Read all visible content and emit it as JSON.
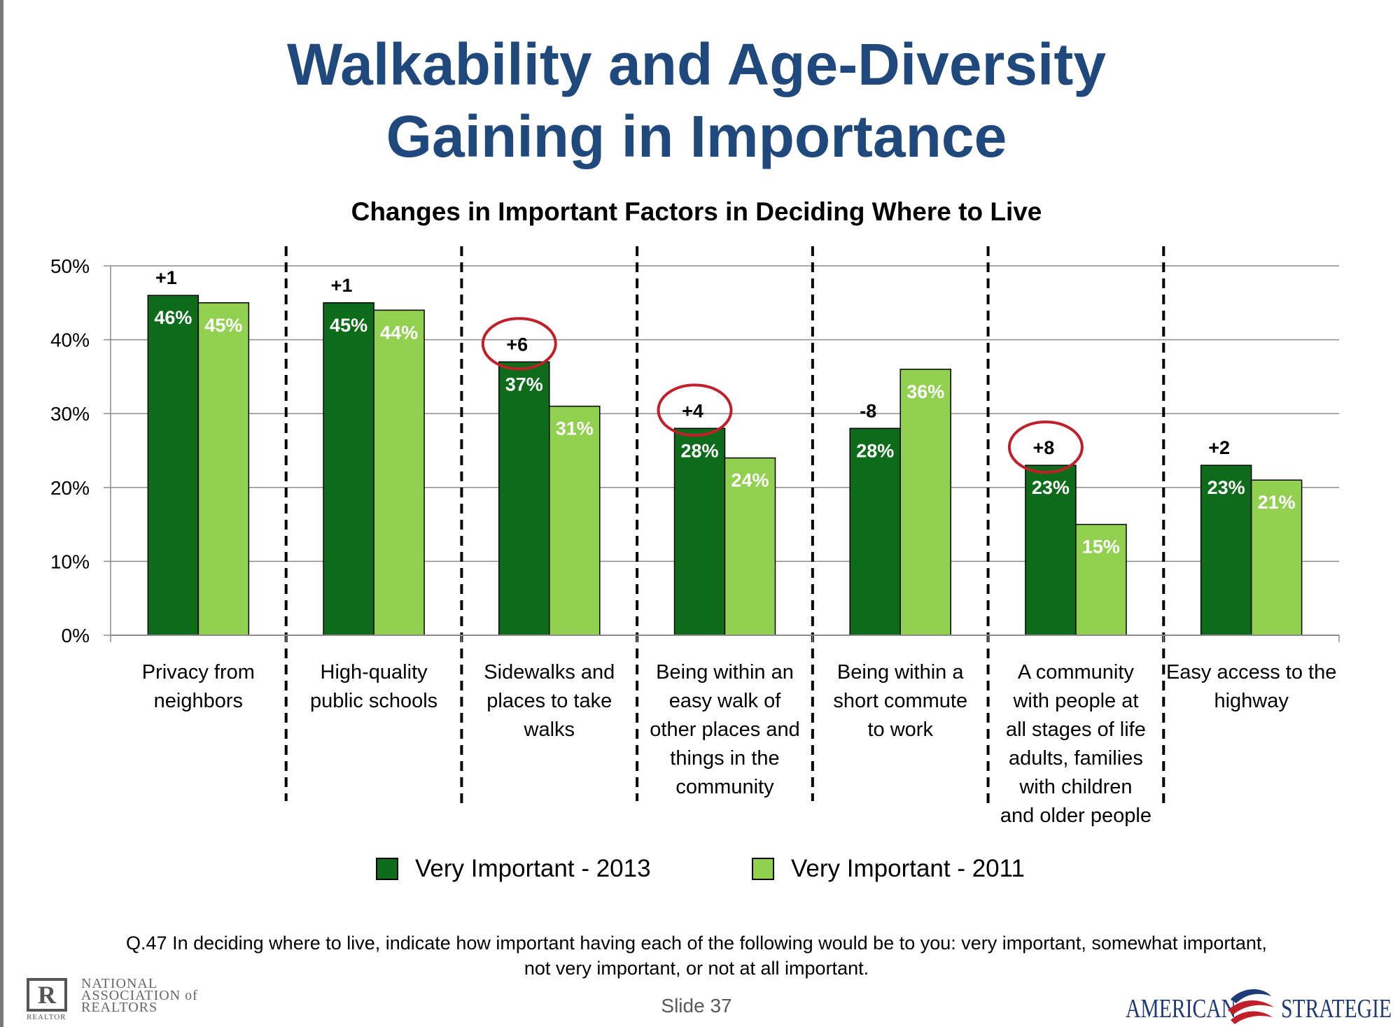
{
  "slide_title": [
    "Walkability and Age-Diversity",
    "Gaining in Importance"
  ],
  "chart_data": {
    "type": "bar",
    "title": "Changes in Important Factors in Deciding Where to Live",
    "ylim": [
      0,
      50
    ],
    "yticks": [
      "0%",
      "10%",
      "20%",
      "30%",
      "40%",
      "50%"
    ],
    "grid": true,
    "legend_position": "bottom",
    "categories": [
      [
        "Privacy from",
        "neighbors"
      ],
      [
        "High-quality",
        "public schools"
      ],
      [
        "Sidewalks and",
        "places to take",
        "walks"
      ],
      [
        "Being within an",
        "easy walk of",
        "other places and",
        "things in the",
        "community"
      ],
      [
        "Being within a",
        "short commute",
        "to work"
      ],
      [
        "A community",
        "with people at",
        "all stages of life",
        "adults, families",
        "with children",
        "and older people"
      ],
      [
        "Easy access to the",
        "highway"
      ]
    ],
    "series": [
      {
        "name": "Very Important - 2013",
        "color": "#0d6b1a",
        "values": [
          46,
          45,
          37,
          28,
          28,
          23,
          23
        ],
        "labels": [
          "46%",
          "45%",
          "37%",
          "28%",
          "28%",
          "23%",
          "23%"
        ]
      },
      {
        "name": "Very Important - 2011",
        "color": "#92d050",
        "values": [
          45,
          44,
          31,
          24,
          36,
          15,
          21
        ],
        "labels": [
          "45%",
          "44%",
          "31%",
          "24%",
          "36%",
          "15%",
          "21%"
        ]
      }
    ],
    "change_labels": [
      "+1",
      "+1",
      "+6",
      "+4",
      "-8",
      "+8",
      "+2"
    ],
    "circled": [
      false,
      false,
      true,
      true,
      false,
      true,
      false
    ],
    "circle_color": "#c0202a"
  },
  "footnote": [
    "Q.47 In deciding where to live, indicate how important having each of the following would be to you: very important, somewhat important,",
    "not very important, or not at all important."
  ],
  "slide_number": "Slide 37",
  "logos": {
    "left": {
      "mark": "R",
      "small": "REALTOR",
      "lines": [
        "NATIONAL",
        "ASSOCIATION of",
        "REALTORS"
      ]
    },
    "right": {
      "word1": "AMERICAN",
      "word2": "STRATEGIES"
    }
  }
}
